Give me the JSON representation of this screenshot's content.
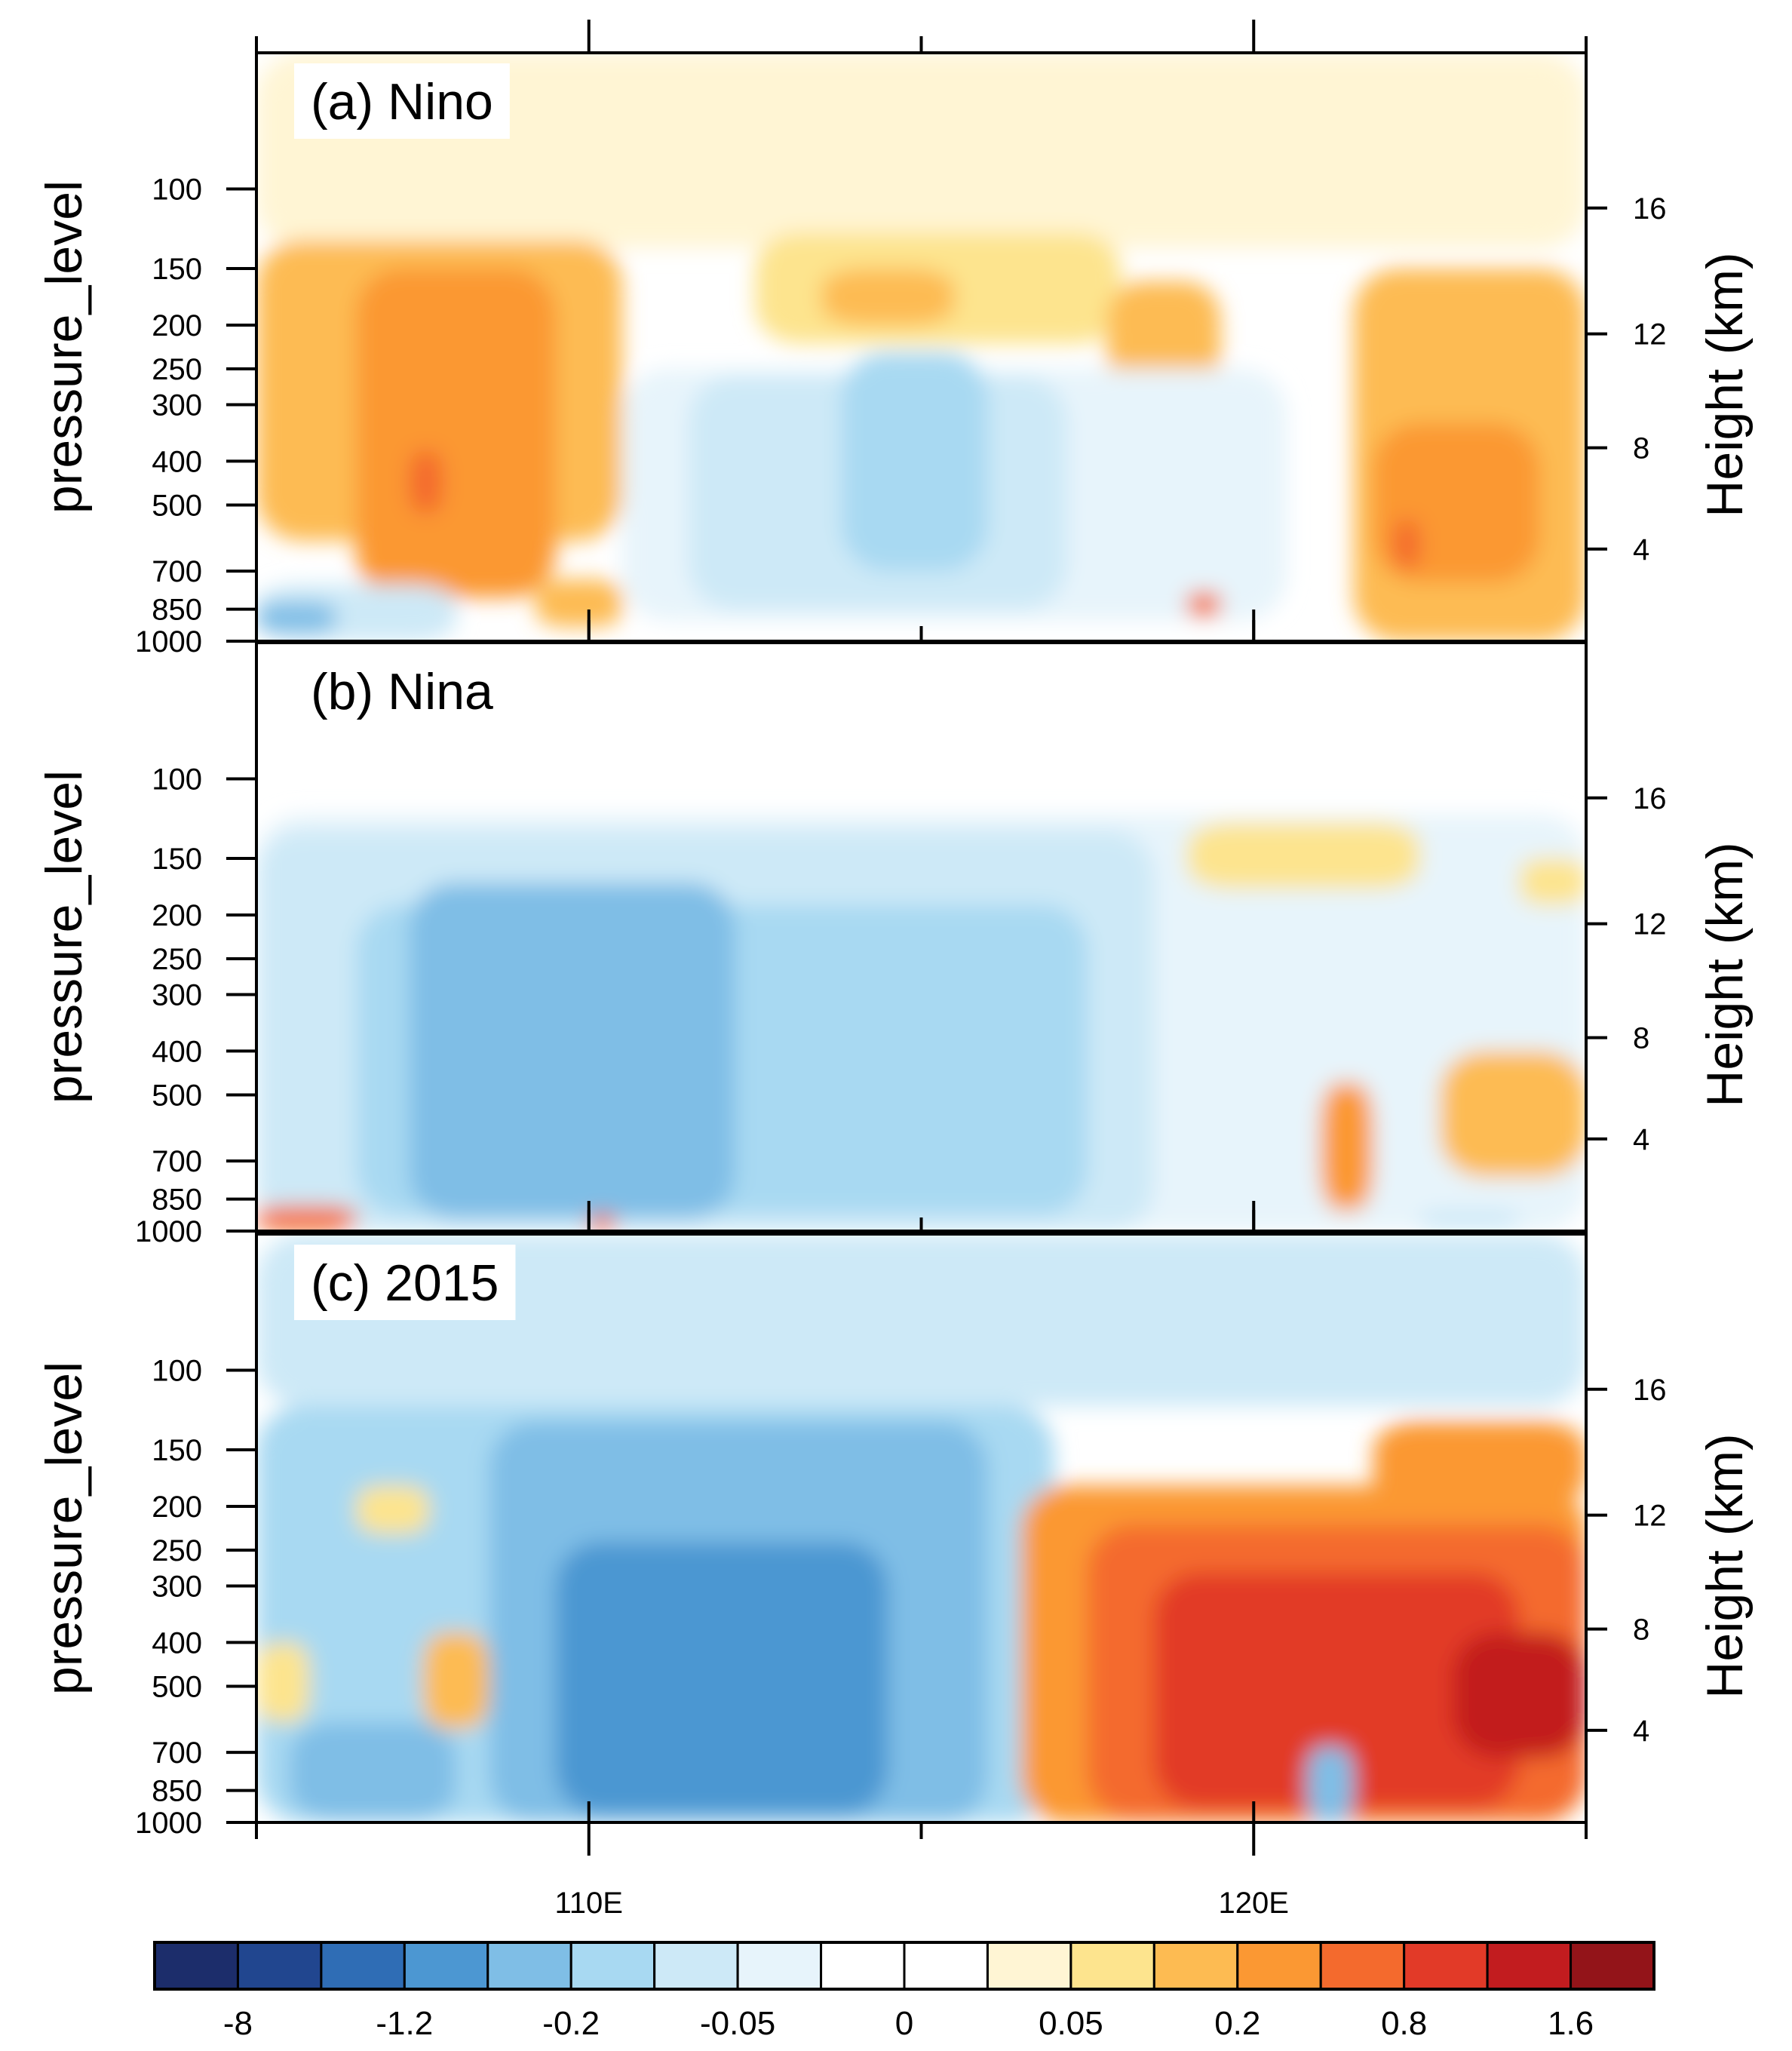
{
  "chart_data": {
    "type": "heatmap",
    "layout": "3 stacked longitude-pressure panels sharing x axis and one horizontal colorbar",
    "x_axis": {
      "range_deg_east": [
        105,
        125
      ],
      "major_ticks": [
        110,
        120
      ],
      "tick_labels": [
        "110E",
        "120E"
      ],
      "minor_ticks": [
        105,
        115,
        125
      ]
    },
    "y_axis_left": {
      "label": "pressure_level",
      "scale": "log",
      "range_hPa": [
        1000,
        50
      ],
      "ticks": [
        100,
        150,
        200,
        250,
        300,
        400,
        500,
        700,
        850,
        1000
      ],
      "tick_labels": [
        "100",
        "150",
        "200",
        "250",
        "300",
        "400",
        "500",
        "700",
        "850",
        "1000"
      ]
    },
    "y_axis_right": {
      "label": "Height (km)",
      "ticks": [
        16,
        12,
        8,
        4
      ],
      "tick_labels": [
        "16",
        "12",
        "8",
        "4"
      ],
      "height_km_at_pressure": {
        "1000": 0.1,
        "850": 1.5,
        "700": 3.1,
        "500": 5.8,
        "400": 7.5,
        "300": 9.6,
        "250": 10.8,
        "200": 12.3,
        "150": 14.1,
        "100": 16.6
      }
    },
    "colorbar": {
      "orientation": "horizontal",
      "colors": [
        "#1c2d6b",
        "#21468f",
        "#2f6db5",
        "#4c97d2",
        "#7fbee6",
        "#a8d9f2",
        "#cde9f7",
        "#e7f4fb",
        "#ffffff",
        "#ffffff",
        "#fff5d4",
        "#fde48e",
        "#fdbb52",
        "#fb9833",
        "#f46a2d",
        "#e23a28",
        "#c21c1f",
        "#931419"
      ],
      "label_values": [
        "-8",
        "-1.2",
        "-0.2",
        "-0.05",
        "0",
        "0.05",
        "0.2",
        "0.8",
        "1.6"
      ]
    },
    "panels": [
      {
        "label": "(a) Nino",
        "pattern_summary": "Warm anomalies (0.05 to 0.8) over 105-111E and 118-125E through most of the column; weak cold anomalies (-0.05 to -0.2) over 111-117E in 200-850 hPa; cold near surface west of 108E.",
        "regions": [
          {
            "lon": [
              105,
              125
            ],
            "p": [
              50,
              135
            ],
            "v": 0.03
          },
          {
            "lon": [
              105,
              110.5
            ],
            "p": [
              130,
              600
            ],
            "v": 0.1
          },
          {
            "lon": [
              106.5,
              109.5
            ],
            "p": [
              150,
              800
            ],
            "v": 0.3
          },
          {
            "lon": [
              107.3,
              107.8
            ],
            "p": [
              380,
              520
            ],
            "v": 0.7
          },
          {
            "lon": [
              112.5,
              118
            ],
            "p": [
              125,
              220
            ],
            "v": 0.08
          },
          {
            "lon": [
              113.5,
              115.5
            ],
            "p": [
              150,
              200
            ],
            "v": 0.15
          },
          {
            "lon": [
              117.8,
              119.5
            ],
            "p": [
              160,
              280
            ],
            "v": 0.12
          },
          {
            "lon": [
              121.5,
              125
            ],
            "p": [
              150,
              1000
            ],
            "v": 0.1
          },
          {
            "lon": [
              121.8,
              124.3
            ],
            "p": [
              330,
              740
            ],
            "v": 0.3
          },
          {
            "lon": [
              122.1,
              122.5
            ],
            "p": [
              540,
              690
            ],
            "v": 0.7
          },
          {
            "lon": [
              110.5,
              120.5
            ],
            "p": [
              250,
              900
            ],
            "v": -0.03
          },
          {
            "lon": [
              111.5,
              117.2
            ],
            "p": [
              260,
              850
            ],
            "v": -0.06
          },
          {
            "lon": [
              113.8,
              116
            ],
            "p": [
              230,
              700
            ],
            "v": -0.12
          },
          {
            "lon": [
              105,
              108
            ],
            "p": [
              750,
              1000
            ],
            "v": -0.1
          },
          {
            "lon": [
              105,
              106.2
            ],
            "p": [
              820,
              960
            ],
            "v": -0.3
          },
          {
            "lon": [
              119,
              119.5
            ],
            "p": [
              780,
              880
            ],
            "v": 0.4
          },
          {
            "lon": [
              109.2,
              110.5
            ],
            "p": [
              730,
              930
            ],
            "v": 0.1
          }
        ]
      },
      {
        "label": "(b) Nina",
        "pattern_summary": "Widespread cold anomalies (-0.05 to -0.3) over 105-118E from 130 hPa to the surface, strongest near 108E mid-troposphere; weak warm patches near 119E upper levels, 124E mid-levels and the 121E low-level column.",
        "regions": [
          {
            "lon": [
              105,
              125
            ],
            "p": [
              120,
              1000
            ],
            "v": -0.03
          },
          {
            "lon": [
              105,
              118.5
            ],
            "p": [
              130,
              1000
            ],
            "v": -0.07
          },
          {
            "lon": [
              106.5,
              117.5
            ],
            "p": [
              190,
              920
            ],
            "v": -0.15
          },
          {
            "lon": [
              107.3,
              112.2
            ],
            "p": [
              170,
              940
            ],
            "v": -0.3
          },
          {
            "lon": [
              107.8,
              108.6
            ],
            "p": [
              380,
              600
            ],
            "v": -0.55
          },
          {
            "lon": [
              119,
              122.5
            ],
            "p": [
              125,
              175
            ],
            "v": 0.06
          },
          {
            "lon": [
              124,
              125
            ],
            "p": [
              150,
              190
            ],
            "v": 0.07
          },
          {
            "lon": [
              122.8,
              125
            ],
            "p": [
              400,
              760
            ],
            "v": 0.12
          },
          {
            "lon": [
              121,
              121.8
            ],
            "p": [
              470,
              900
            ],
            "v": 0.2
          },
          {
            "lon": [
              105,
              106.5
            ],
            "p": [
              880,
              1000
            ],
            "v": 0.6
          },
          {
            "lon": [
              110,
              110.4
            ],
            "p": [
              920,
              1000
            ],
            "v": 0.4
          },
          {
            "lon": [
              122.5,
              124
            ],
            "p": [
              900,
              1000
            ],
            "v": -0.07
          }
        ]
      },
      {
        "label": "(c) 2015",
        "pattern_summary": "Strong cold anomalies (-0.2 to -1.2) over 107-115E throughout 120-1000 hPa; strong warm anomalies (0.2 to 1.6) over 117-125E from 150 hPa to the surface, peaking near 123-125E at 400-600 hPa; cold column near 121E lower troposphere.",
        "regions": [
          {
            "lon": [
              105,
              125
            ],
            "p": [
              50,
              120
            ],
            "v": -0.07
          },
          {
            "lon": [
              105,
              117
            ],
            "p": [
              120,
              1000
            ],
            "v": -0.15
          },
          {
            "lon": [
              108.5,
              116
            ],
            "p": [
              130,
              1000
            ],
            "v": -0.4
          },
          {
            "lon": [
              109.5,
              114.5
            ],
            "p": [
              240,
              960
            ],
            "v": -0.9
          },
          {
            "lon": [
              105.5,
              108
            ],
            "p": [
              600,
              990
            ],
            "v": -0.5
          },
          {
            "lon": [
              107.5,
              108.5
            ],
            "p": [
              380,
              620
            ],
            "v": 0.12
          },
          {
            "lon": [
              106.5,
              107.6
            ],
            "p": [
              180,
              230
            ],
            "v": 0.07
          },
          {
            "lon": [
              105,
              105.8
            ],
            "p": [
              400,
              600
            ],
            "v": 0.06
          },
          {
            "lon": [
              116.5,
              125
            ],
            "p": [
              180,
              1000
            ],
            "v": 0.3
          },
          {
            "lon": [
              117.5,
              125
            ],
            "p": [
              220,
              980
            ],
            "v": 0.6
          },
          {
            "lon": [
              118.5,
              124
            ],
            "p": [
              280,
              930
            ],
            "v": 0.95
          },
          {
            "lon": [
              123,
              125
            ],
            "p": [
              380,
              720
            ],
            "v": 1.3
          },
          {
            "lon": [
              121.8,
              125
            ],
            "p": [
              130,
              200
            ],
            "v": 0.2
          },
          {
            "lon": [
              120.8,
              121.5
            ],
            "p": [
              680,
              1000
            ],
            "v": -0.3
          }
        ]
      }
    ]
  }
}
